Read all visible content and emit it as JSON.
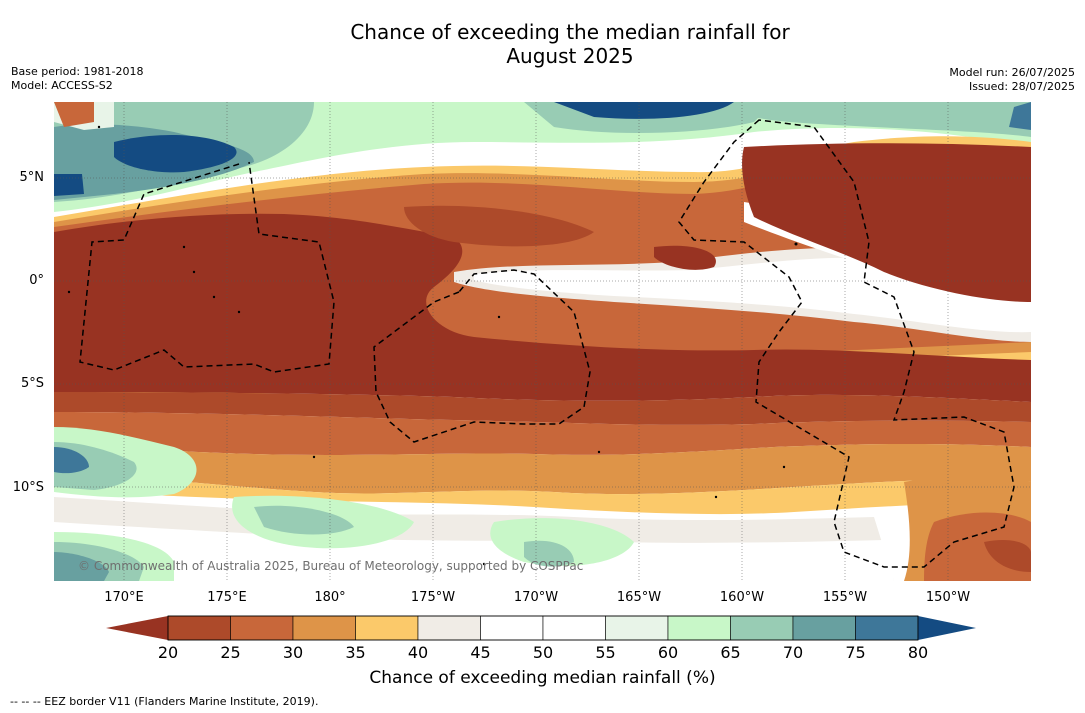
{
  "title_line1": "Chance of exceeding the median rainfall for",
  "title_line2": "August 2025",
  "base_period": "Base period: 1981-2018",
  "model": "Model: ACCESS-S2",
  "model_run": "Model run: 26/07/2025",
  "issued": "Issued: 28/07/2025",
  "lat_labels": [
    "5°N",
    "0°",
    "5°S",
    "10°S"
  ],
  "lon_labels": [
    "170°E",
    "175°E",
    "180°",
    "175°W",
    "170°W",
    "165°W",
    "160°W",
    "155°W",
    "150°W"
  ],
  "copyright": "© Commonwealth of Australia 2025, Bureau of Meteorology, supported by COSPPac",
  "colorbar": {
    "label": "Chance of exceeding median rainfall (%)",
    "ticks": [
      "20",
      "25",
      "30",
      "35",
      "40",
      "45",
      "50",
      "55",
      "60",
      "65",
      "70",
      "75",
      "80"
    ],
    "under_color": "#983322",
    "over_color": "#144b82",
    "colors": [
      "#983322",
      "#ad4a2a",
      "#c8673a",
      "#de9448",
      "#fbc96a",
      "#f0ece6",
      "#ffffff",
      "#ffffff",
      "#e8f4e8",
      "#c8f7c8",
      "#98ccb4",
      "#68a0a0",
      "#3e7799",
      "#144b82"
    ]
  },
  "eez_note": "-- -- -- EEZ border V11 (Flanders Marine Institute, 2019)."
}
